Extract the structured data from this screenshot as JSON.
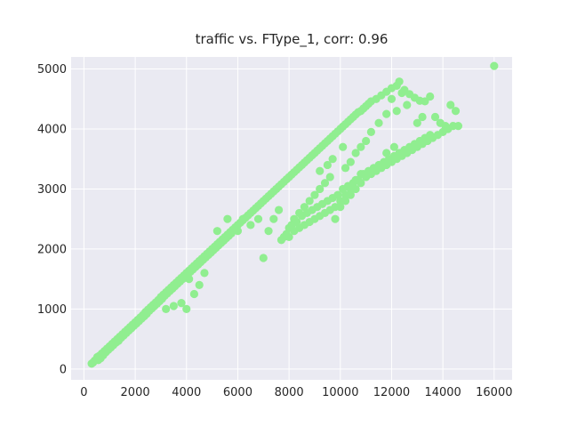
{
  "chart_data": {
    "type": "scatter",
    "title": "traffic vs. FType_1, corr: 0.96",
    "xlabel": "",
    "ylabel": "",
    "xlim": [
      -500,
      16700
    ],
    "ylim": [
      -180,
      5200
    ],
    "xticks": [
      0,
      2000,
      4000,
      6000,
      8000,
      10000,
      12000,
      14000,
      16000
    ],
    "yticks": [
      0,
      1000,
      2000,
      3000,
      4000,
      5000
    ],
    "xtick_labels": [
      "0",
      "2000",
      "4000",
      "6000",
      "8000",
      "10000",
      "12000",
      "14000",
      "16000"
    ],
    "ytick_labels": [
      "0",
      "1000",
      "2000",
      "3000",
      "4000",
      "5000"
    ],
    "grid": true,
    "series": [
      {
        "color": "#90ee90",
        "points": [
          [
            300,
            90
          ],
          [
            360,
            110
          ],
          [
            420,
            140
          ],
          [
            480,
            160
          ],
          [
            520,
            200
          ],
          [
            560,
            150
          ],
          [
            600,
            220
          ],
          [
            650,
            180
          ],
          [
            700,
            260
          ],
          [
            750,
            230
          ],
          [
            800,
            300
          ],
          [
            850,
            280
          ],
          [
            900,
            340
          ],
          [
            950,
            320
          ],
          [
            1000,
            380
          ],
          [
            1050,
            360
          ],
          [
            1100,
            420
          ],
          [
            1150,
            400
          ],
          [
            1200,
            460
          ],
          [
            1250,
            440
          ],
          [
            1300,
            500
          ],
          [
            1350,
            470
          ],
          [
            1400,
            540
          ],
          [
            1450,
            520
          ],
          [
            1500,
            580
          ],
          [
            1550,
            560
          ],
          [
            1600,
            620
          ],
          [
            1650,
            600
          ],
          [
            1700,
            660
          ],
          [
            1750,
            640
          ],
          [
            1800,
            700
          ],
          [
            1850,
            680
          ],
          [
            1900,
            740
          ],
          [
            1950,
            720
          ],
          [
            2000,
            780
          ],
          [
            2050,
            760
          ],
          [
            2100,
            820
          ],
          [
            2150,
            800
          ],
          [
            2200,
            860
          ],
          [
            2250,
            840
          ],
          [
            2300,
            900
          ],
          [
            2350,
            880
          ],
          [
            2400,
            950
          ],
          [
            2450,
            920
          ],
          [
            2500,
            990
          ],
          [
            2550,
            970
          ],
          [
            2600,
            1030
          ],
          [
            2650,
            1010
          ],
          [
            2700,
            1070
          ],
          [
            2750,
            1050
          ],
          [
            2800,
            1110
          ],
          [
            2850,
            1090
          ],
          [
            2900,
            1150
          ],
          [
            2950,
            1130
          ],
          [
            3000,
            1200
          ],
          [
            3050,
            1170
          ],
          [
            3100,
            1240
          ],
          [
            3150,
            1220
          ],
          [
            3200,
            1280
          ],
          [
            3250,
            1260
          ],
          [
            3300,
            1320
          ],
          [
            3350,
            1300
          ],
          [
            3400,
            1360
          ],
          [
            3450,
            1340
          ],
          [
            3500,
            1400
          ],
          [
            3550,
            1380
          ],
          [
            3600,
            1440
          ],
          [
            3650,
            1420
          ],
          [
            3700,
            1480
          ],
          [
            3750,
            1460
          ],
          [
            3800,
            1520
          ],
          [
            3850,
            1500
          ],
          [
            3900,
            1560
          ],
          [
            3950,
            1540
          ],
          [
            4000,
            1600
          ],
          [
            4050,
            1580
          ],
          [
            4100,
            1640
          ],
          [
            4150,
            1620
          ],
          [
            4200,
            1680
          ],
          [
            4250,
            1660
          ],
          [
            4300,
            1720
          ],
          [
            4350,
            1700
          ],
          [
            4400,
            1760
          ],
          [
            4450,
            1740
          ],
          [
            4500,
            1800
          ],
          [
            4550,
            1780
          ],
          [
            4600,
            1840
          ],
          [
            4650,
            1820
          ],
          [
            4700,
            1880
          ],
          [
            4750,
            1860
          ],
          [
            4800,
            1920
          ],
          [
            4850,
            1900
          ],
          [
            4900,
            1960
          ],
          [
            4950,
            1940
          ],
          [
            5000,
            2000
          ],
          [
            5050,
            1980
          ],
          [
            5100,
            2040
          ],
          [
            5150,
            2020
          ],
          [
            5200,
            2080
          ],
          [
            5250,
            2060
          ],
          [
            5300,
            2120
          ],
          [
            5350,
            2100
          ],
          [
            5400,
            2160
          ],
          [
            5450,
            2140
          ],
          [
            5500,
            2200
          ],
          [
            5550,
            2180
          ],
          [
            5600,
            2240
          ],
          [
            5650,
            2220
          ],
          [
            5700,
            2280
          ],
          [
            5750,
            2260
          ],
          [
            5800,
            2320
          ],
          [
            5900,
            2360
          ],
          [
            6000,
            2400
          ],
          [
            6100,
            2440
          ],
          [
            6200,
            2480
          ],
          [
            6300,
            2520
          ],
          [
            6400,
            2560
          ],
          [
            6500,
            2600
          ],
          [
            6600,
            2640
          ],
          [
            6700,
            2680
          ],
          [
            6800,
            2720
          ],
          [
            6900,
            2760
          ],
          [
            7000,
            2800
          ],
          [
            7100,
            2840
          ],
          [
            7200,
            2880
          ],
          [
            7300,
            2920
          ],
          [
            7400,
            2960
          ],
          [
            7500,
            3000
          ],
          [
            7600,
            3040
          ],
          [
            7700,
            3080
          ],
          [
            7800,
            3120
          ],
          [
            7900,
            3160
          ],
          [
            8000,
            3200
          ],
          [
            8100,
            3240
          ],
          [
            8200,
            3280
          ],
          [
            8300,
            3320
          ],
          [
            8400,
            3360
          ],
          [
            8500,
            3400
          ],
          [
            8600,
            3440
          ],
          [
            8700,
            3480
          ],
          [
            8800,
            3520
          ],
          [
            8900,
            3560
          ],
          [
            9000,
            3600
          ],
          [
            9100,
            3640
          ],
          [
            9200,
            3680
          ],
          [
            9300,
            3720
          ],
          [
            9400,
            3760
          ],
          [
            9500,
            3800
          ],
          [
            9600,
            3840
          ],
          [
            9700,
            3880
          ],
          [
            9800,
            3920
          ],
          [
            9900,
            3960
          ],
          [
            10000,
            4000
          ],
          [
            10100,
            4040
          ],
          [
            10200,
            4080
          ],
          [
            10300,
            4120
          ],
          [
            10400,
            4160
          ],
          [
            10500,
            4200
          ],
          [
            10600,
            4240
          ],
          [
            10700,
            4280
          ],
          [
            10800,
            4300
          ],
          [
            10900,
            4340
          ],
          [
            11000,
            4380
          ],
          [
            11100,
            4420
          ],
          [
            11200,
            4460
          ],
          [
            11400,
            4500
          ],
          [
            11600,
            4560
          ],
          [
            11800,
            4620
          ],
          [
            12000,
            4680
          ],
          [
            12200,
            4720
          ],
          [
            12300,
            4790
          ],
          [
            12500,
            4650
          ],
          [
            12700,
            4580
          ],
          [
            12900,
            4520
          ],
          [
            13100,
            4470
          ],
          [
            13300,
            4460
          ],
          [
            13500,
            4540
          ],
          [
            13700,
            4200
          ],
          [
            13900,
            4100
          ],
          [
            14100,
            4050
          ],
          [
            14300,
            4400
          ],
          [
            14500,
            4300
          ],
          [
            3200,
            1000
          ],
          [
            3500,
            1050
          ],
          [
            3800,
            1100
          ],
          [
            4000,
            1000
          ],
          [
            4100,
            1500
          ],
          [
            4300,
            1250
          ],
          [
            4500,
            1400
          ],
          [
            4700,
            1600
          ],
          [
            5200,
            2300
          ],
          [
            5600,
            2500
          ],
          [
            6000,
            2300
          ],
          [
            6200,
            2500
          ],
          [
            6500,
            2400
          ],
          [
            6800,
            2500
          ],
          [
            7000,
            1850
          ],
          [
            7200,
            2300
          ],
          [
            7400,
            2500
          ],
          [
            7600,
            2650
          ],
          [
            7800,
            2200
          ],
          [
            8000,
            2350
          ],
          [
            8200,
            2500
          ],
          [
            8400,
            2600
          ],
          [
            8600,
            2700
          ],
          [
            8800,
            2800
          ],
          [
            9000,
            2900
          ],
          [
            9200,
            3000
          ],
          [
            9400,
            3100
          ],
          [
            9600,
            3200
          ],
          [
            9800,
            2500
          ],
          [
            10000,
            2700
          ],
          [
            10200,
            2800
          ],
          [
            10400,
            2900
          ],
          [
            10600,
            3000
          ],
          [
            10800,
            3100
          ],
          [
            11000,
            3200
          ],
          [
            11200,
            3250
          ],
          [
            11400,
            3300
          ],
          [
            11600,
            3350
          ],
          [
            11800,
            3400
          ],
          [
            12000,
            3450
          ],
          [
            12200,
            3500
          ],
          [
            12400,
            3550
          ],
          [
            12600,
            3600
          ],
          [
            12800,
            3650
          ],
          [
            13000,
            3700
          ],
          [
            13200,
            3750
          ],
          [
            13400,
            3800
          ],
          [
            13600,
            3850
          ],
          [
            13800,
            3900
          ],
          [
            14000,
            3950
          ],
          [
            14200,
            4000
          ],
          [
            14400,
            4050
          ],
          [
            14600,
            4050
          ],
          [
            8000,
            2200
          ],
          [
            8200,
            2300
          ],
          [
            8400,
            2350
          ],
          [
            8600,
            2400
          ],
          [
            8800,
            2450
          ],
          [
            9000,
            2500
          ],
          [
            9200,
            2550
          ],
          [
            9400,
            2600
          ],
          [
            9600,
            2650
          ],
          [
            9800,
            2700
          ],
          [
            10000,
            2800
          ],
          [
            10200,
            2900
          ],
          [
            10400,
            3000
          ],
          [
            10600,
            3150
          ],
          [
            10800,
            3250
          ],
          [
            7700,
            2150
          ],
          [
            7900,
            2250
          ],
          [
            8100,
            2400
          ],
          [
            8300,
            2450
          ],
          [
            8500,
            2550
          ],
          [
            8700,
            2600
          ],
          [
            8900,
            2650
          ],
          [
            9100,
            2700
          ],
          [
            9300,
            2750
          ],
          [
            9500,
            2800
          ],
          [
            9700,
            2850
          ],
          [
            9900,
            2900
          ],
          [
            10100,
            3000
          ],
          [
            10300,
            3050
          ],
          [
            10500,
            3100
          ],
          [
            10700,
            3150
          ],
          [
            10900,
            3250
          ],
          [
            11100,
            3300
          ],
          [
            11300,
            3350
          ],
          [
            11500,
            3400
          ],
          [
            11700,
            3450
          ],
          [
            11900,
            3500
          ],
          [
            12100,
            3550
          ],
          [
            12300,
            3600
          ],
          [
            12500,
            3650
          ],
          [
            12700,
            3700
          ],
          [
            12900,
            3750
          ],
          [
            13100,
            3800
          ],
          [
            13300,
            3850
          ],
          [
            13500,
            3900
          ],
          [
            11800,
            4250
          ],
          [
            12000,
            4500
          ],
          [
            12200,
            4300
          ],
          [
            11500,
            4100
          ],
          [
            11000,
            3800
          ],
          [
            11200,
            3950
          ],
          [
            10800,
            3700
          ],
          [
            10600,
            3600
          ],
          [
            10400,
            3450
          ],
          [
            10200,
            3350
          ],
          [
            12400,
            4600
          ],
          [
            12600,
            4400
          ],
          [
            13000,
            4100
          ],
          [
            13200,
            4200
          ],
          [
            11800,
            3600
          ],
          [
            12100,
            3700
          ],
          [
            9200,
            3300
          ],
          [
            9500,
            3400
          ],
          [
            9700,
            3500
          ],
          [
            10100,
            3700
          ],
          [
            16000,
            5050
          ]
        ]
      }
    ]
  }
}
